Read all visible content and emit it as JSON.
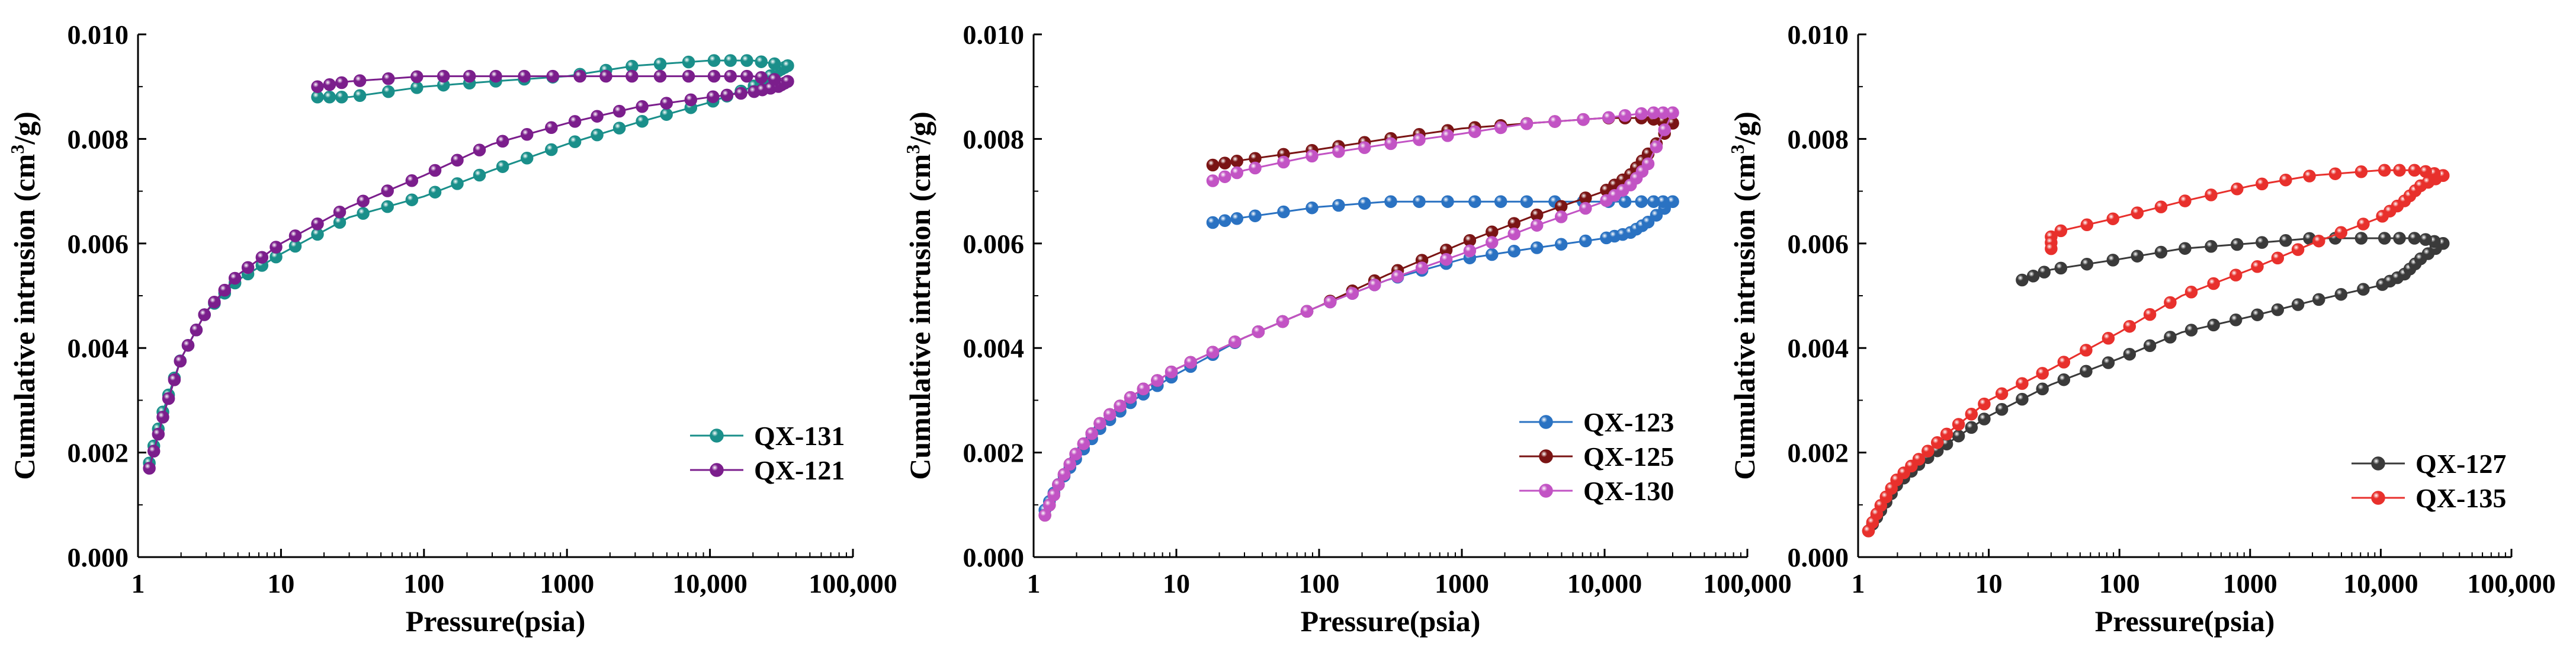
{
  "colors": {
    "QX-131": "#1a8f8a",
    "QX-121": "#7b1e8c",
    "QX-123": "#2a72c2",
    "QX-125": "#7a1414",
    "QX-130": "#c253c4",
    "QX-127": "#3a3a3a",
    "QX-135": "#e8302c"
  },
  "chart_data": [
    {
      "type": "line",
      "xscale": "log",
      "xlim": [
        1,
        100000
      ],
      "ylim": [
        0,
        0.01
      ],
      "xticks": [
        "1",
        "10",
        "100",
        "1000",
        "10,000",
        "100,000"
      ],
      "yticks": [
        "0.000",
        "0.002",
        "0.004",
        "0.006",
        "0.008",
        "0.010"
      ],
      "xlabel": "Pressure(psia)",
      "ylabel_pre": "Cumulative  intrusion (cm",
      "ylabel_sup": "3",
      "ylabel_post": "/g)",
      "legend_position": "bottom-right",
      "series": [
        {
          "name": "QX-131",
          "color_key": "QX-131",
          "intrusion": [
            [
              1.2,
              0.0018
            ],
            [
              1.5,
              0.0028
            ],
            [
              2,
              0.0038
            ],
            [
              3,
              0.0047
            ],
            [
              5,
              0.0053
            ],
            [
              10,
              0.0058
            ],
            [
              30,
              0.0065
            ],
            [
              100,
              0.0069
            ],
            [
              300,
              0.0074
            ],
            [
              1000,
              0.0079
            ],
            [
              3000,
              0.0083
            ],
            [
              10000,
              0.0087
            ],
            [
              20000,
              0.009
            ],
            [
              30000,
              0.0093
            ],
            [
              35000,
              0.0094
            ]
          ],
          "extrusion": [
            [
              35000,
              0.0094
            ],
            [
              20000,
              0.0095
            ],
            [
              10000,
              0.0095
            ],
            [
              3000,
              0.0094
            ],
            [
              1000,
              0.0092
            ],
            [
              300,
              0.0091
            ],
            [
              100,
              0.009
            ],
            [
              30,
              0.0088
            ],
            [
              18,
              0.0088
            ]
          ]
        },
        {
          "name": "QX-121",
          "color_key": "QX-121",
          "intrusion": [
            [
              1.2,
              0.0017
            ],
            [
              1.5,
              0.0027
            ],
            [
              2,
              0.0038
            ],
            [
              3,
              0.0047
            ],
            [
              5,
              0.0054
            ],
            [
              10,
              0.006
            ],
            [
              30,
              0.0067
            ],
            [
              100,
              0.0073
            ],
            [
              300,
              0.0079
            ],
            [
              1000,
              0.0083
            ],
            [
              3000,
              0.0086
            ],
            [
              10000,
              0.0088
            ],
            [
              20000,
              0.0089
            ],
            [
              30000,
              0.009
            ],
            [
              35000,
              0.0091
            ]
          ],
          "extrusion": [
            [
              35000,
              0.0091
            ],
            [
              20000,
              0.0092
            ],
            [
              10000,
              0.0092
            ],
            [
              3000,
              0.0092
            ],
            [
              1000,
              0.0092
            ],
            [
              300,
              0.0092
            ],
            [
              100,
              0.0092
            ],
            [
              30,
              0.0091
            ],
            [
              18,
              0.009
            ]
          ]
        }
      ]
    },
    {
      "type": "line",
      "xscale": "log",
      "xlim": [
        1,
        100000
      ],
      "ylim": [
        0,
        0.01
      ],
      "xticks": [
        "1",
        "10",
        "100",
        "1000",
        "10,000",
        "100,000"
      ],
      "yticks": [
        "0.000",
        "0.002",
        "0.004",
        "0.006",
        "0.008",
        "0.010"
      ],
      "xlabel": "Pressure(psia)",
      "ylabel_pre": "Cumulative  intrusion (cm",
      "ylabel_sup": "3",
      "ylabel_post": "/g)",
      "legend_position": "bottom-right",
      "series": [
        {
          "name": "QX-123",
          "color_key": "QX-123",
          "intrusion": [
            [
              1.2,
              0.0009
            ],
            [
              1.5,
              0.0014
            ],
            [
              2,
              0.0019
            ],
            [
              3,
              0.0025
            ],
            [
              5,
              0.003
            ],
            [
              10,
              0.0035
            ],
            [
              30,
              0.0042
            ],
            [
              100,
              0.0048
            ],
            [
              300,
              0.0053
            ],
            [
              1000,
              0.0057
            ],
            [
              3000,
              0.0059
            ],
            [
              10000,
              0.0061
            ],
            [
              15000,
              0.0062
            ],
            [
              20000,
              0.0064
            ],
            [
              30000,
              0.0068
            ]
          ],
          "extrusion": [
            [
              30000,
              0.0068
            ],
            [
              20000,
              0.0068
            ],
            [
              10000,
              0.0068
            ],
            [
              3000,
              0.0068
            ],
            [
              1000,
              0.0068
            ],
            [
              300,
              0.0068
            ],
            [
              100,
              0.0067
            ],
            [
              30,
              0.0065
            ],
            [
              18,
              0.0064
            ]
          ]
        },
        {
          "name": "QX-125",
          "color_key": "QX-125",
          "intrusion": [
            [
              1.2,
              0.0008
            ],
            [
              1.5,
              0.0014
            ],
            [
              2,
              0.002
            ],
            [
              3,
              0.0026
            ],
            [
              5,
              0.0031
            ],
            [
              10,
              0.0036
            ],
            [
              30,
              0.0042
            ],
            [
              100,
              0.0048
            ],
            [
              300,
              0.0054
            ],
            [
              1000,
              0.006
            ],
            [
              3000,
              0.0065
            ],
            [
              10000,
              0.007
            ],
            [
              15000,
              0.0073
            ],
            [
              20000,
              0.0077
            ],
            [
              30000,
              0.0083
            ]
          ],
          "extrusion": [
            [
              30000,
              0.0083
            ],
            [
              20000,
              0.0084
            ],
            [
              10000,
              0.0084
            ],
            [
              3000,
              0.0083
            ],
            [
              1000,
              0.0082
            ],
            [
              300,
              0.008
            ],
            [
              100,
              0.0078
            ],
            [
              30,
              0.0076
            ],
            [
              18,
              0.0075
            ]
          ]
        },
        {
          "name": "QX-130",
          "color_key": "QX-130",
          "intrusion": [
            [
              1.2,
              0.0008
            ],
            [
              1.5,
              0.0014
            ],
            [
              2,
              0.002
            ],
            [
              3,
              0.0026
            ],
            [
              5,
              0.0031
            ],
            [
              10,
              0.0036
            ],
            [
              30,
              0.0042
            ],
            [
              100,
              0.0048
            ],
            [
              300,
              0.0053
            ],
            [
              1000,
              0.0058
            ],
            [
              3000,
              0.0063
            ],
            [
              10000,
              0.0068
            ],
            [
              15000,
              0.0071
            ],
            [
              20000,
              0.0075
            ],
            [
              30000,
              0.0085
            ]
          ],
          "extrusion": [
            [
              30000,
              0.0085
            ],
            [
              20000,
              0.0085
            ],
            [
              10000,
              0.0084
            ],
            [
              3000,
              0.0083
            ],
            [
              1000,
              0.0081
            ],
            [
              300,
              0.0079
            ],
            [
              100,
              0.0077
            ],
            [
              30,
              0.0074
            ],
            [
              18,
              0.0072
            ]
          ]
        }
      ]
    },
    {
      "type": "line",
      "xscale": "log",
      "xlim": [
        1,
        100000
      ],
      "ylim": [
        0,
        0.01
      ],
      "xticks": [
        "1",
        "10",
        "100",
        "1000",
        "10,000",
        "100,000"
      ],
      "yticks": [
        "0.000",
        "0.002",
        "0.004",
        "0.006",
        "0.008",
        "0.010"
      ],
      "xlabel": "Pressure(psia)",
      "ylabel_pre": "Cumulative  intrusion (cm",
      "ylabel_sup": "3",
      "ylabel_post": "/g)",
      "legend_position": "bottom-right",
      "series": [
        {
          "name": "QX-127",
          "color_key": "QX-127",
          "intrusion": [
            [
              1.2,
              0.0005
            ],
            [
              1.5,
              0.0009
            ],
            [
              2,
              0.0014
            ],
            [
              3,
              0.0018
            ],
            [
              5,
              0.0022
            ],
            [
              10,
              0.0027
            ],
            [
              30,
              0.0033
            ],
            [
              100,
              0.0038
            ],
            [
              300,
              0.0043
            ],
            [
              1000,
              0.0046
            ],
            [
              3000,
              0.0049
            ],
            [
              10000,
              0.0052
            ],
            [
              15000,
              0.0054
            ],
            [
              20000,
              0.0057
            ],
            [
              30000,
              0.006
            ]
          ],
          "extrusion": [
            [
              30000,
              0.006
            ],
            [
              20000,
              0.0061
            ],
            [
              10000,
              0.0061
            ],
            [
              3000,
              0.0061
            ],
            [
              1000,
              0.006
            ],
            [
              300,
              0.0059
            ],
            [
              100,
              0.0057
            ],
            [
              30,
              0.0055
            ],
            [
              18,
              0.0053
            ]
          ]
        },
        {
          "name": "QX-135",
          "color_key": "QX-135",
          "intrusion": [
            [
              1.2,
              0.0005
            ],
            [
              1.5,
              0.001
            ],
            [
              2,
              0.0015
            ],
            [
              3,
              0.0019
            ],
            [
              5,
              0.0024
            ],
            [
              10,
              0.003
            ],
            [
              30,
              0.0036
            ],
            [
              100,
              0.0043
            ],
            [
              300,
              0.005
            ],
            [
              1000,
              0.0055
            ],
            [
              3000,
              0.006
            ],
            [
              10000,
              0.0065
            ],
            [
              15000,
              0.0068
            ],
            [
              20000,
              0.0071
            ],
            [
              30000,
              0.0073
            ]
          ],
          "extrusion": [
            [
              30000,
              0.0073
            ],
            [
              20000,
              0.0074
            ],
            [
              10000,
              0.0074
            ],
            [
              3000,
              0.0073
            ],
            [
              1000,
              0.0071
            ],
            [
              300,
              0.0068
            ],
            [
              100,
              0.0065
            ],
            [
              30,
              0.0062
            ],
            [
              30,
              0.0059
            ]
          ]
        }
      ]
    }
  ]
}
